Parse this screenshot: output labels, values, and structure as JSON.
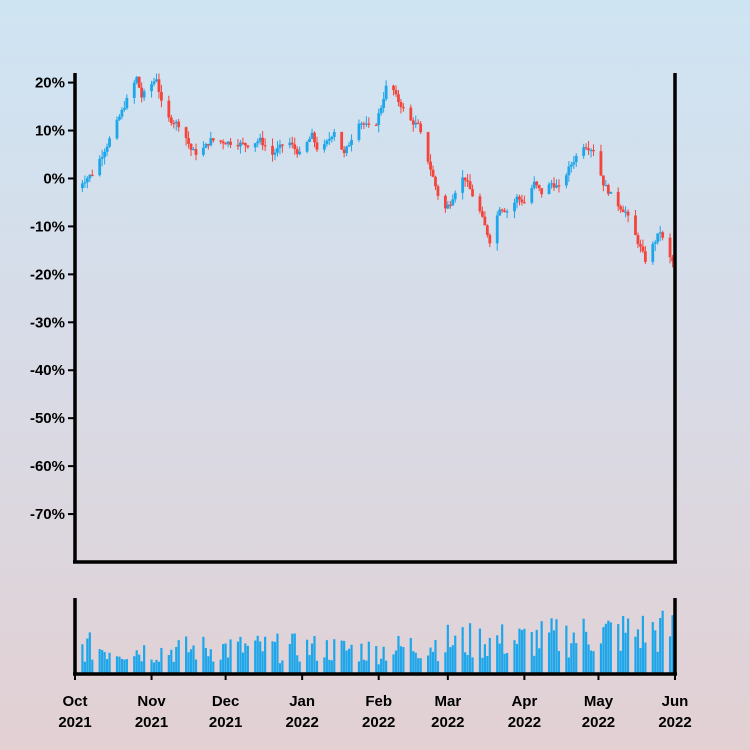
{
  "chart_data": [
    {
      "type": "candlestick",
      "title": "",
      "xlabel": "",
      "ylabel": "",
      "start_date": "2021-10-01",
      "end_date": "2022-06-01",
      "ylim": [
        -80,
        22
      ],
      "y_ticks": [
        "20%",
        "10%",
        "0%",
        "-10%",
        "-20%",
        "-30%",
        "-40%",
        "-50%",
        "-60%",
        "-70%"
      ],
      "y_tick_values": [
        20,
        10,
        0,
        -10,
        -20,
        -30,
        -40,
        -50,
        -60,
        -70
      ],
      "x_ticks": [
        {
          "line1": "Oct",
          "line2": "2021",
          "date": "2021-10-01"
        },
        {
          "line1": "Nov",
          "line2": "2021",
          "date": "2021-11-01"
        },
        {
          "line1": "Dec",
          "line2": "2021",
          "date": "2021-12-01"
        },
        {
          "line1": "Jan",
          "line2": "2022",
          "date": "2022-01-01"
        },
        {
          "line1": "Feb",
          "line2": "2022",
          "date": "2022-02-01"
        },
        {
          "line1": "Mar",
          "line2": "2022",
          "date": "2022-03-01"
        },
        {
          "line1": "Apr",
          "line2": "2022",
          "date": "2022-04-01"
        },
        {
          "line1": "May",
          "line2": "2022",
          "date": "2022-05-01"
        },
        {
          "line1": "Jun",
          "line2": "2022",
          "date": "2022-06-01"
        }
      ],
      "series": [
        {
          "name": "",
          "points": [
            {
              "date": "2021-10-01",
              "value": -2
            },
            {
              "date": "2021-10-08",
              "value": 1
            },
            {
              "date": "2021-10-14",
              "value": 7
            },
            {
              "date": "2021-10-20",
              "value": 14
            },
            {
              "date": "2021-10-26",
              "value": 21
            },
            {
              "date": "2021-10-28",
              "value": 17
            },
            {
              "date": "2021-11-03",
              "value": 21
            },
            {
              "date": "2021-11-06",
              "value": 13
            },
            {
              "date": "2021-11-13",
              "value": 11
            },
            {
              "date": "2021-11-17",
              "value": 6
            },
            {
              "date": "2021-11-20",
              "value": 5
            },
            {
              "date": "2021-11-25",
              "value": 8
            },
            {
              "date": "2021-12-10",
              "value": 7
            },
            {
              "date": "2021-12-15",
              "value": 8
            },
            {
              "date": "2021-12-20",
              "value": 5
            },
            {
              "date": "2021-12-26",
              "value": 8
            },
            {
              "date": "2021-12-31",
              "value": 5
            },
            {
              "date": "2022-01-05",
              "value": 9
            },
            {
              "date": "2022-01-08",
              "value": 5
            },
            {
              "date": "2022-01-14",
              "value": 10
            },
            {
              "date": "2022-01-18",
              "value": 5
            },
            {
              "date": "2022-01-24",
              "value": 12
            },
            {
              "date": "2022-01-30",
              "value": 10
            },
            {
              "date": "2022-02-02",
              "value": 15
            },
            {
              "date": "2022-02-05",
              "value": 21
            },
            {
              "date": "2022-02-08",
              "value": 17
            },
            {
              "date": "2022-02-14",
              "value": 12
            },
            {
              "date": "2022-02-17",
              "value": 11
            },
            {
              "date": "2022-02-22",
              "value": 2
            },
            {
              "date": "2022-02-27",
              "value": -7
            },
            {
              "date": "2022-03-02",
              "value": -5
            },
            {
              "date": "2022-03-06",
              "value": 0
            },
            {
              "date": "2022-03-08",
              "value": 0
            },
            {
              "date": "2022-03-14",
              "value": -7
            },
            {
              "date": "2022-03-18",
              "value": -13
            },
            {
              "date": "2022-03-22",
              "value": -6
            },
            {
              "date": "2022-03-26",
              "value": -7
            },
            {
              "date": "2022-03-29",
              "value": -4
            },
            {
              "date": "2022-04-01",
              "value": -5
            },
            {
              "date": "2022-04-05",
              "value": -1
            },
            {
              "date": "2022-04-08",
              "value": -3
            },
            {
              "date": "2022-04-12",
              "value": -1
            },
            {
              "date": "2022-04-15",
              "value": -2
            },
            {
              "date": "2022-04-20",
              "value": 3
            },
            {
              "date": "2022-04-25",
              "value": 7
            },
            {
              "date": "2022-04-29",
              "value": 6
            },
            {
              "date": "2022-05-03",
              "value": -1
            },
            {
              "date": "2022-05-08",
              "value": -5
            },
            {
              "date": "2022-05-12",
              "value": -7
            },
            {
              "date": "2022-05-16",
              "value": -12
            },
            {
              "date": "2022-05-20",
              "value": -17
            },
            {
              "date": "2022-05-23",
              "value": -14
            },
            {
              "date": "2022-05-26",
              "value": -11
            },
            {
              "date": "2022-05-29",
              "value": -16
            },
            {
              "date": "2022-06-01",
              "value": -18
            }
          ]
        }
      ],
      "colors": {
        "up": "#1ea6ea",
        "down": "#f4453c",
        "axis": "#000000",
        "volume": "#1ea6ea"
      }
    },
    {
      "type": "bar",
      "title": "",
      "xlabel": "",
      "ylabel": "",
      "start_date": "2021-10-01",
      "end_date": "2022-06-01",
      "ylim": [
        0,
        1
      ],
      "volume_trend": [
        {
          "date": "2021-10-01",
          "level": 0.42
        },
        {
          "date": "2021-11-01",
          "level": 0.36
        },
        {
          "date": "2021-12-01",
          "level": 0.4
        },
        {
          "date": "2022-01-01",
          "level": 0.4
        },
        {
          "date": "2022-02-01",
          "level": 0.36
        },
        {
          "date": "2022-03-01",
          "level": 0.5
        },
        {
          "date": "2022-04-01",
          "level": 0.52
        },
        {
          "date": "2022-05-01",
          "level": 0.62
        },
        {
          "date": "2022-06-01",
          "level": 0.66
        }
      ],
      "colors": {
        "bar": "#1ea6ea"
      }
    }
  ]
}
